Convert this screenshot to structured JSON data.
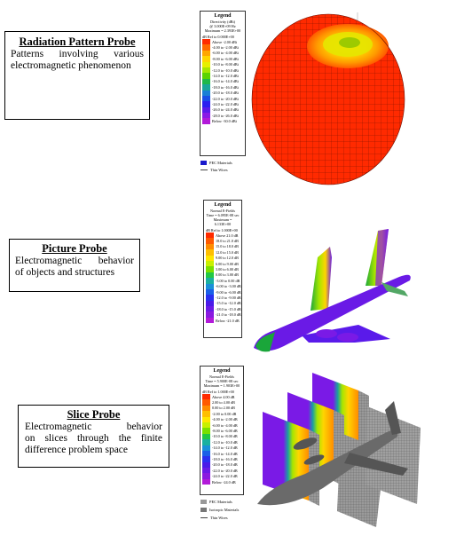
{
  "probes": [
    {
      "title": "Radiation Pattern Probe",
      "lines": [
        "Patterns involving various",
        "electromagnetic phenomenon"
      ]
    },
    {
      "title": "Picture Probe",
      "lines": [
        "Electromagnetic behavior",
        "of objects and structures"
      ]
    },
    {
      "title": "Slice Probe",
      "lines": [
        "Electromagnetic behavior",
        "on slices through the finite",
        "difference problem space"
      ]
    }
  ],
  "legend1": {
    "title": "Legend",
    "lines": [
      "Directivity (dBi)",
      "@ 3.000E+09 Hz",
      "Maximum = 2.393E+00",
      "dB Ref to 0.000E+00"
    ],
    "ranges": [
      "Above -2.00 dBi",
      "-4.00 to -2.00 dBi",
      "-6.00 to -4.00 dBi",
      "-8.00 to -6.00 dBi",
      "-10.0 to -8.00 dBi",
      "-12.0 to -10.0 dBi",
      "-14.0 to -12.0 dBi",
      "-16.0 to -14.0 dBi",
      "-18.0 to -16.0 dBi",
      "-20.0 to -18.0 dBi",
      "-22.0 to -20.0 dBi",
      "-24.0 to -22.0 dBi",
      "-26.0 to -24.0 dBi",
      "-28.0 to -26.0 dBi",
      "Below -30.0 dBi"
    ],
    "keys": [
      "PEC Materials",
      "Thin Wires"
    ]
  },
  "legend2": {
    "title": "Legend",
    "lines": [
      "Normal E-Fields",
      "Time = 6.095E-08 sec",
      "Maximum = 6.133E+00",
      "dB Ref to 1.000E+00"
    ],
    "ranges": [
      "Above 21.0 dB",
      "18.0 to 21.0 dB",
      "15.0 to 18.0 dB",
      "12.0 to 15.0 dB",
      "9.00 to 12.0 dB",
      "6.00 to 9.00 dB",
      "3.00 to 6.00 dB",
      "0.00 to 3.00 dB",
      "-3.00 to 0.00 dB",
      "-6.00 to -3.00 dB",
      "-9.00 to -6.00 dB",
      "-12.0 to -9.00 dB",
      "-15.0 to -12.0 dB",
      "-18.0 to -15.0 dB",
      "-21.0 to -18.0 dB",
      "Below -21.0 dB"
    ]
  },
  "legend3": {
    "title": "Legend",
    "lines": [
      "Normal E-Fields",
      "Time = 5.900E-08 sec",
      "Maximum = 1.903E+00",
      "dB Ref to 1.000E+00"
    ],
    "ranges": [
      "Above 4.00 dB",
      "2.00 to 4.00 dB",
      "0.00 to 2.00 dB",
      "-2.00 to 0.00 dB",
      "-4.00 to -2.00 dB",
      "-6.00 to -4.00 dB",
      "-8.00 to -6.00 dB",
      "-10.0 to -8.00 dB",
      "-12.0 to -10.0 dB",
      "-14.0 to -12.0 dB",
      "-16.0 to -14.0 dB",
      "-18.0 to -16.0 dB",
      "-20.0 to -18.0 dB",
      "-22.0 to -20.0 dB",
      "-24.0 to -22.0 dB",
      "Below -24.0 dB"
    ],
    "keys": [
      "PEC Materials",
      "Isotropic Materials",
      "Thin Wires"
    ]
  },
  "colors": {
    "scale15": [
      "#ff2b00",
      "#ff6a00",
      "#ffa600",
      "#ffd500",
      "#e6f000",
      "#a6e600",
      "#5ad400",
      "#1fb84a",
      "#1aa69a",
      "#1a7fd6",
      "#1a4fe6",
      "#2a1ff0",
      "#5a1aea",
      "#8a1ae6",
      "#b21ad9"
    ],
    "scale16": [
      "#ff2b00",
      "#ff5a00",
      "#ff8c00",
      "#ffbf00",
      "#ffe600",
      "#c8f000",
      "#7ae000",
      "#22c845",
      "#1ab0a0",
      "#1a90d8",
      "#1a60e8",
      "#2a30f0",
      "#4a1ae8",
      "#6a1ae6",
      "#8a1ae0",
      "#b21ad9"
    ],
    "pec": "#1a1acc",
    "isotropic": "#888888"
  }
}
